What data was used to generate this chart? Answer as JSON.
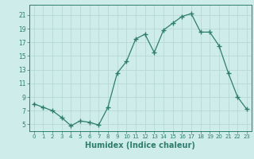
{
  "x": [
    0,
    1,
    2,
    3,
    4,
    5,
    6,
    7,
    8,
    9,
    10,
    11,
    12,
    13,
    14,
    15,
    16,
    17,
    18,
    19,
    20,
    21,
    22,
    23
  ],
  "y": [
    8,
    7.5,
    7,
    6,
    4.8,
    5.5,
    5.3,
    4.9,
    7.5,
    12.5,
    14.2,
    17.5,
    18.2,
    15.5,
    18.8,
    19.8,
    20.8,
    21.2,
    18.5,
    18.5,
    16.5,
    12.5,
    9,
    7.2
  ],
  "line_color": "#2e7d6e",
  "marker": "+",
  "marker_size": 4,
  "bg_color": "#ceecea",
  "grid_color": "#b8d8d5",
  "tick_color": "#2e7d6e",
  "xlabel": "Humidex (Indice chaleur)",
  "xlabel_fontsize": 7,
  "ylabel_ticks": [
    5,
    7,
    9,
    11,
    13,
    15,
    17,
    19,
    21
  ],
  "xlim": [
    -0.5,
    23.5
  ],
  "ylim": [
    4.0,
    22.5
  ],
  "xticks": [
    0,
    1,
    2,
    3,
    4,
    5,
    6,
    7,
    8,
    9,
    10,
    11,
    12,
    13,
    14,
    15,
    16,
    17,
    18,
    19,
    20,
    21,
    22,
    23
  ]
}
